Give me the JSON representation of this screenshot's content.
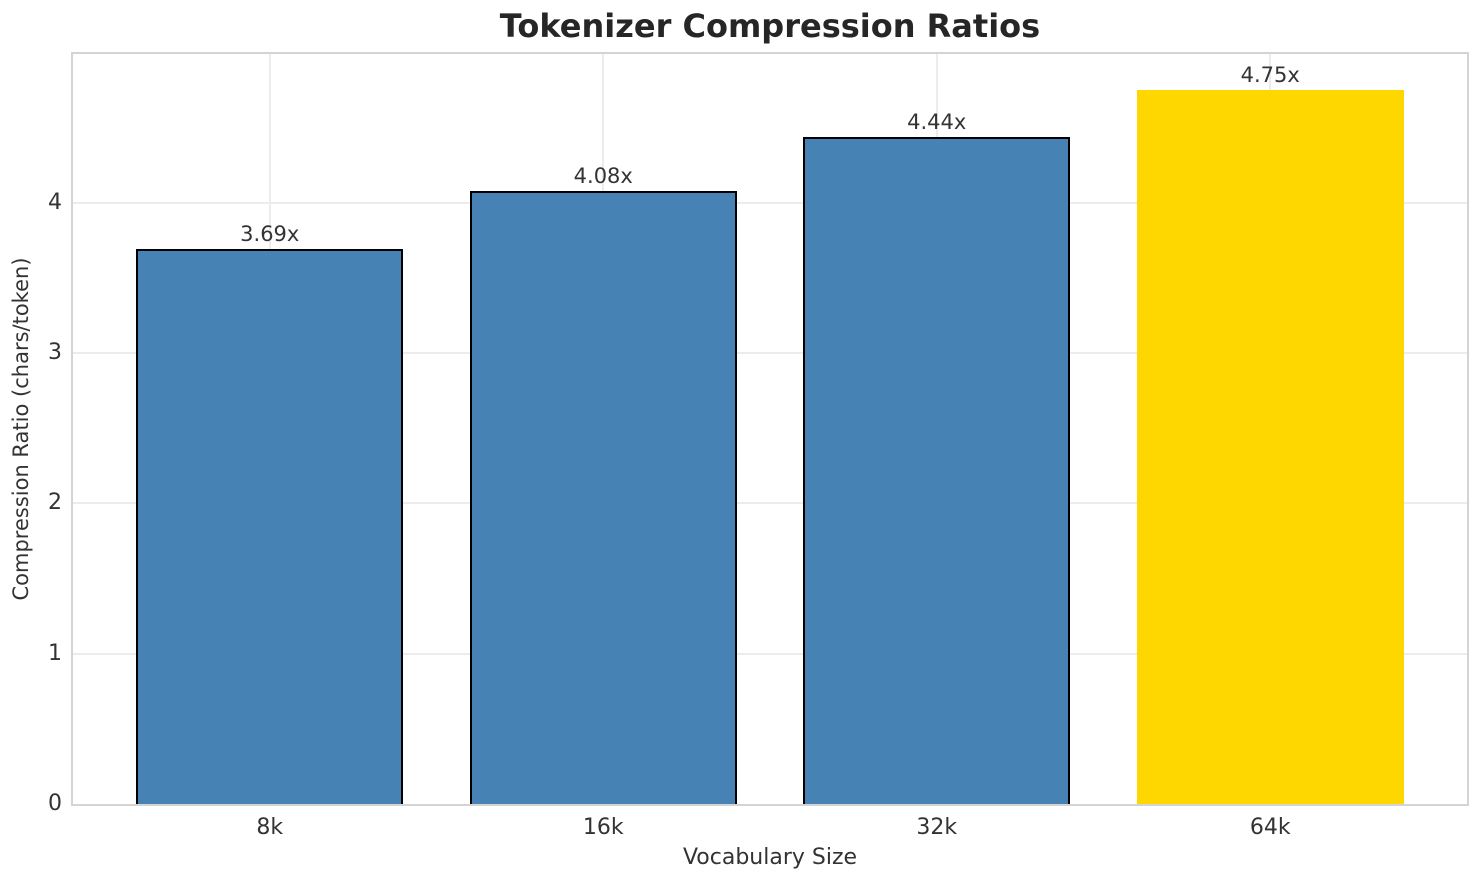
{
  "chart_data": {
    "type": "bar",
    "title": "Tokenizer Compression Ratios",
    "xlabel": "Vocabulary Size",
    "ylabel": "Compression Ratio (chars/token)",
    "categories": [
      "8k",
      "16k",
      "32k",
      "64k"
    ],
    "values": [
      3.69,
      4.08,
      4.44,
      4.75
    ],
    "value_labels": [
      "3.69x",
      "4.08x",
      "4.44x",
      "4.75x"
    ],
    "bar_colors": [
      "#4682B4",
      "#4682B4",
      "#4682B4",
      "#FFD700"
    ],
    "bar_edge_colors": [
      "#000000",
      "#000000",
      "#000000",
      "none"
    ],
    "highlighted_category": "64k",
    "yticks": [
      "0",
      "1",
      "2",
      "3",
      "4"
    ],
    "ylim": [
      0,
      4.99
    ],
    "grid": true,
    "legend_position": "none"
  },
  "style": {
    "bar_default_color": "#4682B4",
    "bar_highlight_color": "#FFD700",
    "grid_color": "#ececec",
    "spine_color": "#d4d4d4",
    "text_color": "#333333",
    "title_color": "#262626",
    "background_color": "#ffffff"
  }
}
